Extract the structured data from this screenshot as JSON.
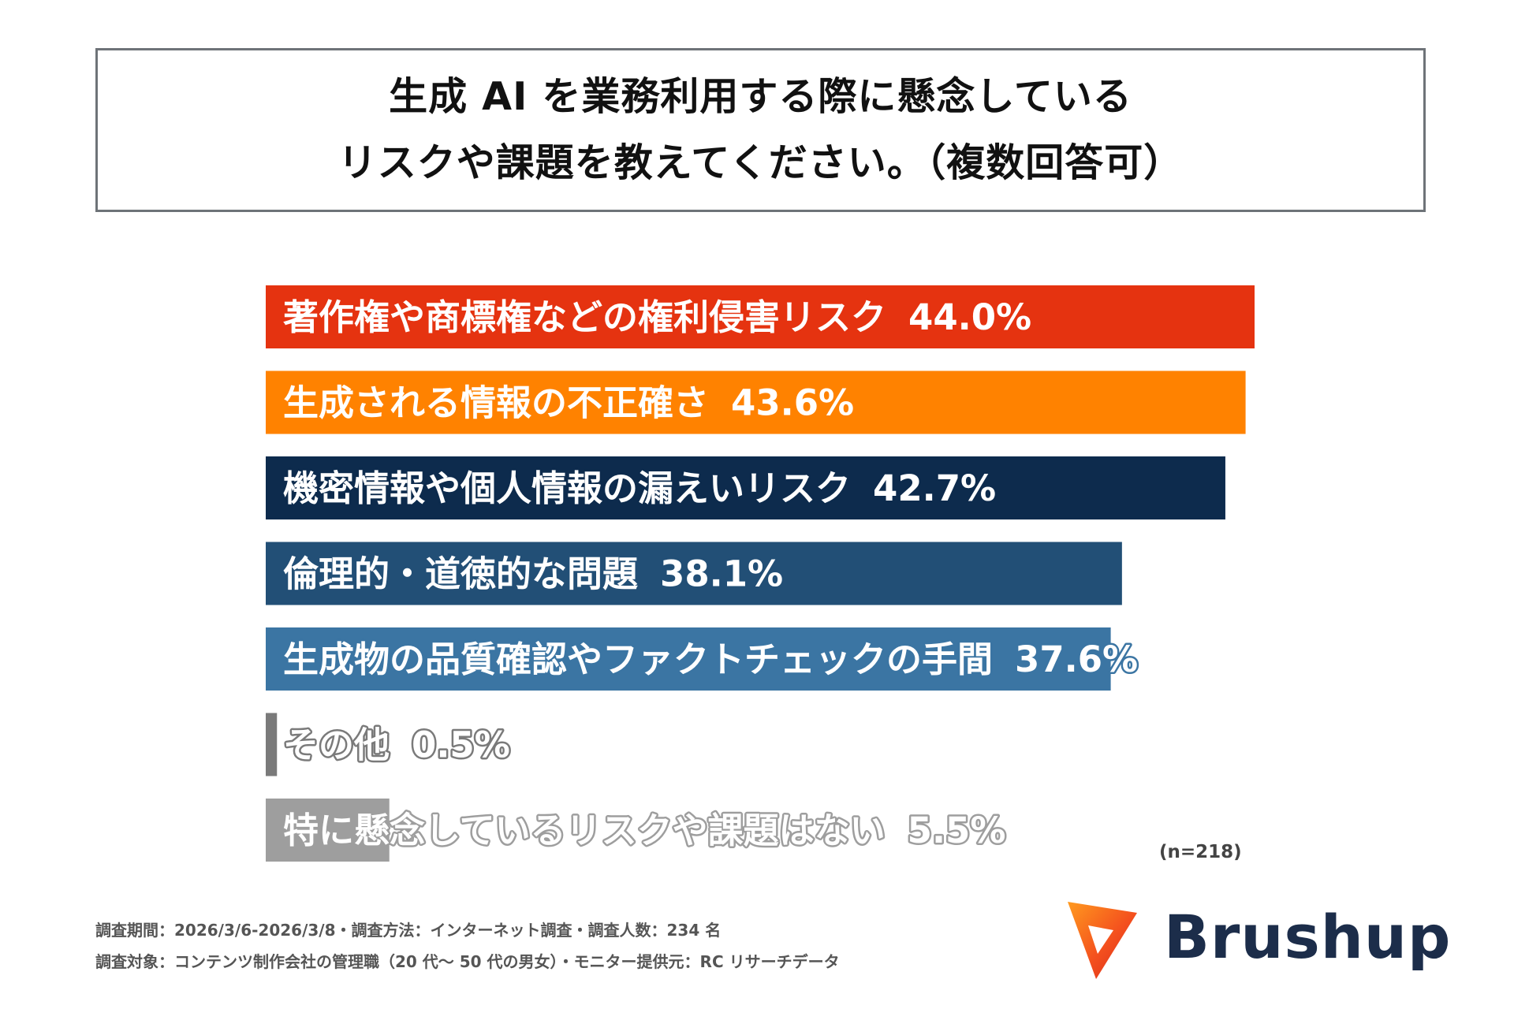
{
  "title": {
    "line1": "生成 AI を業務利用する際に懸念している",
    "line2": "リスクや課題を教えてください。（複数回答可）"
  },
  "chart_data": {
    "type": "bar",
    "orientation": "horizontal",
    "categories": [
      "著作権や商標権などの権利侵害リスク",
      "生成される情報の不正確さ",
      "機密情報や個人情報の漏えいリスク",
      "倫理的・道徳的な問題",
      "生成物の品質確認やファクトチェックの手間",
      "その他",
      "特に懸念しているリスクや課題はない"
    ],
    "values": [
      44.0,
      43.6,
      42.7,
      38.1,
      37.6,
      0.5,
      5.5
    ],
    "value_labels": [
      "44.0%",
      "43.6%",
      "42.7%",
      "38.1%",
      "37.6%",
      "0.5%",
      "5.5%"
    ],
    "colors": [
      "#e53310",
      "#ff8200",
      "#0d2b4d",
      "#224f76",
      "#3b75a3",
      "#7a7a7a",
      "#9e9e9e"
    ],
    "xlim": [
      0,
      44.0
    ],
    "grid": false,
    "legend": "none"
  },
  "sample_size": "(n=218)",
  "footnotes": {
    "line1": "調査期間：2026/3/6-2026/3/8・調査方法：インターネット調査・調査人数：234 名",
    "line2": "調査対象：コンテンツ制作会社の管理職（20 代～ 50 代の男女）・モニター提供元：RC リサーチデータ"
  },
  "logo": {
    "text": "Brushup",
    "text_color": "#1c2d4a",
    "icon_color": "#f4511e"
  }
}
